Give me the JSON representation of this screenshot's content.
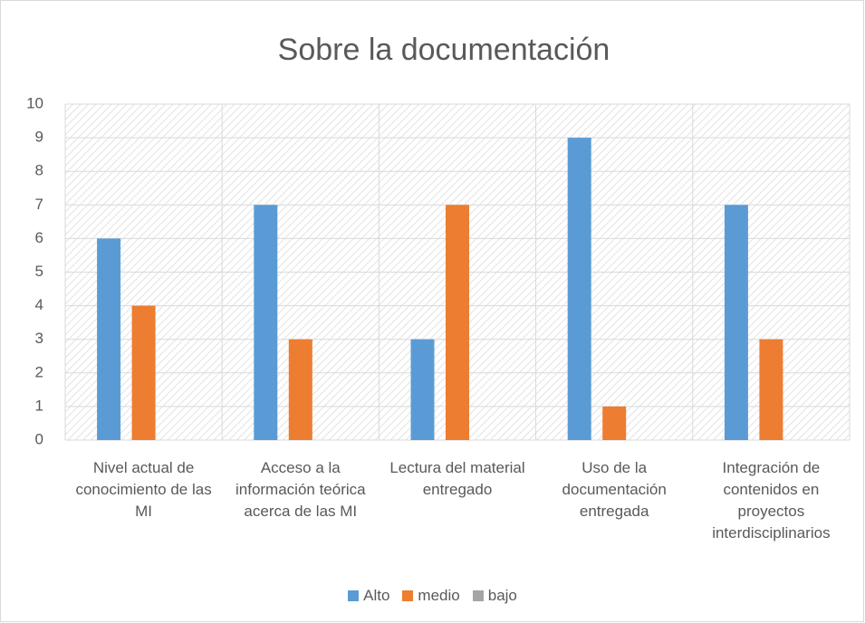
{
  "chart_data": {
    "type": "bar",
    "title": "Sobre la documentación",
    "categories": [
      "Nivel actual de conocimiento de las MI",
      "Acceso a la información teórica acerca de las MI",
      "Lectura del material entregado",
      "Uso de la documentación entregada",
      "Integración de contenidos en proyectos interdisciplinarios"
    ],
    "series": [
      {
        "name": "Alto",
        "color": "#5b9bd5",
        "values": [
          6,
          7,
          3,
          9,
          7
        ]
      },
      {
        "name": "medio",
        "color": "#ed7d31",
        "values": [
          4,
          3,
          7,
          1,
          3
        ]
      },
      {
        "name": "bajo",
        "color": "#a5a5a5",
        "values": [
          0,
          0,
          0,
          0,
          0
        ]
      }
    ],
    "ylim": [
      0,
      10
    ],
    "yticks": [
      0,
      1,
      2,
      3,
      4,
      5,
      6,
      7,
      8,
      9,
      10
    ],
    "grid": true,
    "legend": "bottom"
  }
}
